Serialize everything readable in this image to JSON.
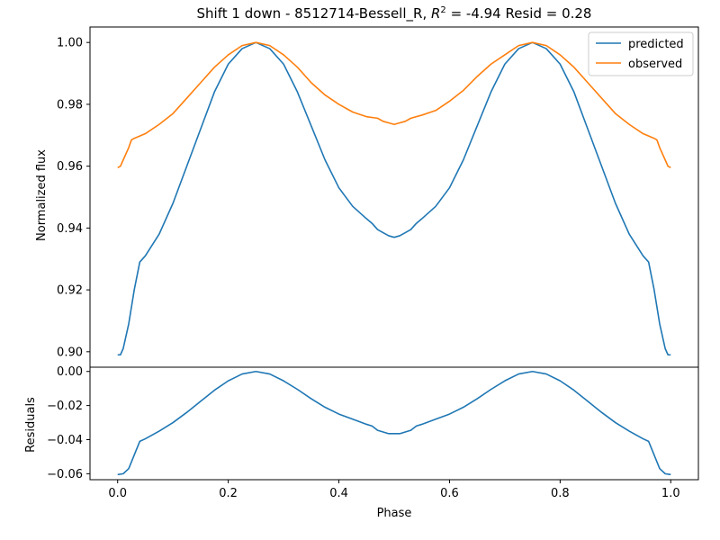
{
  "figure": {
    "title_main": "Shift 1 down - 8512714-Bessell_R, ",
    "title_r": "R",
    "title_sup": "2",
    "title_rest": " = -4.94 Resid = 0.28"
  },
  "chart_data": [
    {
      "type": "line",
      "title": "Shift 1 down - 8512714-Bessell_R, R^2 = -4.94 Resid = 0.28",
      "xlabel": "",
      "ylabel": "Normalized flux",
      "xlim": [
        -0.05,
        1.05
      ],
      "ylim": [
        0.895,
        1.005
      ],
      "yticks": [
        0.9,
        0.92,
        0.94,
        0.96,
        0.98,
        1.0
      ],
      "ytick_labels": [
        "0.90",
        "0.92",
        "0.94",
        "0.96",
        "0.98",
        "1.00"
      ],
      "grid": false,
      "legend": "top-right",
      "series": [
        {
          "name": "predicted",
          "color": "#1f77b4",
          "x": [
            0.0,
            0.005,
            0.01,
            0.02,
            0.03,
            0.04,
            0.05,
            0.075,
            0.1,
            0.125,
            0.15,
            0.175,
            0.2,
            0.225,
            0.25,
            0.275,
            0.3,
            0.325,
            0.35,
            0.375,
            0.4,
            0.425,
            0.45,
            0.46,
            0.47,
            0.48,
            0.49,
            0.5,
            0.51,
            0.52,
            0.53,
            0.54,
            0.55,
            0.575,
            0.6,
            0.625,
            0.65,
            0.675,
            0.7,
            0.725,
            0.75,
            0.775,
            0.8,
            0.825,
            0.85,
            0.875,
            0.9,
            0.925,
            0.95,
            0.96,
            0.97,
            0.98,
            0.99,
            0.995,
            1.0
          ],
          "y": [
            0.899,
            0.899,
            0.901,
            0.909,
            0.92,
            0.929,
            0.931,
            0.938,
            0.948,
            0.96,
            0.972,
            0.984,
            0.993,
            0.998,
            1.0,
            0.998,
            0.993,
            0.984,
            0.973,
            0.962,
            0.953,
            0.947,
            0.943,
            0.9415,
            0.9395,
            0.9385,
            0.9375,
            0.937,
            0.9375,
            0.9385,
            0.9395,
            0.9415,
            0.943,
            0.947,
            0.953,
            0.962,
            0.973,
            0.984,
            0.993,
            0.998,
            1.0,
            0.998,
            0.993,
            0.984,
            0.972,
            0.96,
            0.948,
            0.938,
            0.931,
            0.929,
            0.92,
            0.909,
            0.901,
            0.899,
            0.899
          ]
        },
        {
          "name": "observed",
          "color": "#ff7f0e",
          "x": [
            0.0,
            0.005,
            0.01,
            0.02,
            0.025,
            0.03,
            0.05,
            0.075,
            0.1,
            0.125,
            0.15,
            0.175,
            0.2,
            0.225,
            0.25,
            0.275,
            0.3,
            0.325,
            0.35,
            0.375,
            0.4,
            0.425,
            0.45,
            0.47,
            0.48,
            0.49,
            0.5,
            0.51,
            0.52,
            0.53,
            0.55,
            0.575,
            0.6,
            0.625,
            0.65,
            0.675,
            0.7,
            0.725,
            0.75,
            0.775,
            0.8,
            0.825,
            0.85,
            0.875,
            0.9,
            0.925,
            0.95,
            0.97,
            0.975,
            0.98,
            0.99,
            0.995,
            1.0
          ],
          "y": [
            0.9595,
            0.96,
            0.962,
            0.966,
            0.9685,
            0.969,
            0.9705,
            0.9735,
            0.977,
            0.982,
            0.987,
            0.992,
            0.996,
            0.999,
            1.0,
            0.999,
            0.996,
            0.992,
            0.987,
            0.983,
            0.98,
            0.9775,
            0.976,
            0.9755,
            0.9745,
            0.974,
            0.9735,
            0.974,
            0.9745,
            0.9755,
            0.9765,
            0.978,
            0.981,
            0.9845,
            0.989,
            0.993,
            0.996,
            0.999,
            1.0,
            0.999,
            0.996,
            0.992,
            0.987,
            0.982,
            0.977,
            0.9735,
            0.9705,
            0.969,
            0.9685,
            0.966,
            0.962,
            0.96,
            0.9595
          ]
        }
      ]
    },
    {
      "type": "line",
      "title": "",
      "xlabel": "Phase",
      "ylabel": "Residuals",
      "xlim": [
        -0.05,
        1.05
      ],
      "ylim": [
        -0.0635,
        0.0025
      ],
      "xticks": [
        0.0,
        0.2,
        0.4,
        0.6,
        0.8,
        1.0
      ],
      "xtick_labels": [
        "0.0",
        "0.2",
        "0.4",
        "0.6",
        "0.8",
        "1.0"
      ],
      "yticks": [
        0.0,
        -0.02,
        -0.04,
        -0.06
      ],
      "ytick_labels": [
        "0.00",
        "−0.02",
        "−0.04",
        "−0.06"
      ],
      "grid": false,
      "series": [
        {
          "color": "#1f77b4",
          "x": [
            0.0,
            0.01,
            0.02,
            0.03,
            0.04,
            0.05,
            0.075,
            0.1,
            0.125,
            0.15,
            0.175,
            0.2,
            0.225,
            0.25,
            0.275,
            0.3,
            0.325,
            0.35,
            0.375,
            0.4,
            0.425,
            0.45,
            0.46,
            0.47,
            0.48,
            0.49,
            0.5,
            0.51,
            0.52,
            0.53,
            0.54,
            0.55,
            0.575,
            0.6,
            0.625,
            0.65,
            0.675,
            0.7,
            0.725,
            0.75,
            0.775,
            0.8,
            0.825,
            0.85,
            0.875,
            0.9,
            0.925,
            0.95,
            0.96,
            0.97,
            0.98,
            0.99,
            1.0
          ],
          "y": [
            -0.0605,
            -0.06,
            -0.057,
            -0.049,
            -0.041,
            -0.0395,
            -0.035,
            -0.03,
            -0.024,
            -0.0175,
            -0.011,
            -0.0055,
            -0.0015,
            0.0,
            -0.0015,
            -0.0055,
            -0.0105,
            -0.016,
            -0.021,
            -0.025,
            -0.028,
            -0.031,
            -0.032,
            -0.0345,
            -0.0355,
            -0.0365,
            -0.0365,
            -0.0365,
            -0.0355,
            -0.0345,
            -0.032,
            -0.031,
            -0.028,
            -0.025,
            -0.021,
            -0.016,
            -0.0105,
            -0.0055,
            -0.0015,
            0.0,
            -0.0015,
            -0.0055,
            -0.011,
            -0.0175,
            -0.024,
            -0.03,
            -0.035,
            -0.0395,
            -0.041,
            -0.049,
            -0.057,
            -0.06,
            -0.0605
          ]
        }
      ]
    }
  ]
}
